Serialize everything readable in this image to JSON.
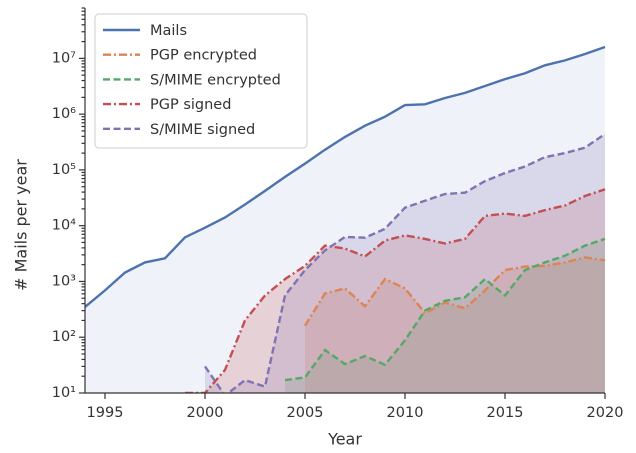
{
  "chart_data": {
    "type": "line",
    "xlabel": "Year",
    "ylabel": "# Mails per year",
    "x": [
      1994,
      1995,
      1996,
      1997,
      1998,
      1999,
      2000,
      2001,
      2002,
      2003,
      2004,
      2005,
      2006,
      2007,
      2008,
      2009,
      2010,
      2011,
      2012,
      2013,
      2014,
      2015,
      2016,
      2017,
      2018,
      2019,
      2020
    ],
    "xlim": [
      1994,
      2020
    ],
    "xticks": [
      1995,
      2000,
      2005,
      2010,
      2015,
      2020
    ],
    "ylim": [
      10,
      80000000
    ],
    "yscale": "log",
    "yticks": [
      {
        "value": 10,
        "label": "10¹"
      },
      {
        "value": 100,
        "label": "10²"
      },
      {
        "value": 1000,
        "label": "10³"
      },
      {
        "value": 10000,
        "label": "10⁴"
      },
      {
        "value": 100000,
        "label": "10⁵"
      },
      {
        "value": 1000000,
        "label": "10⁶"
      },
      {
        "value": 10000000,
        "label": "10⁷"
      }
    ],
    "legend": "upper left",
    "grid": false,
    "series": [
      {
        "name": "Mails",
        "color": "#4c72b0",
        "dash": "solid",
        "values": [
          350,
          690,
          1450,
          2200,
          2600,
          6200,
          9200,
          14000,
          24000,
          42000,
          75000,
          130000,
          230000,
          390000,
          620000,
          900000,
          1450000,
          1500000,
          1950000,
          2400000,
          3200000,
          4250000,
          5400000,
          7500000,
          9200000,
          12000000,
          16000000
        ]
      },
      {
        "name": "PGP encrypted",
        "color": "#dd8452",
        "dash": "dashdot",
        "values": [
          null,
          null,
          null,
          null,
          null,
          null,
          null,
          null,
          null,
          null,
          null,
          160,
          610,
          750,
          360,
          1100,
          750,
          270,
          420,
          330,
          690,
          1600,
          1850,
          1900,
          2200,
          2700,
          2400
        ]
      },
      {
        "name": "S/MIME encrypted",
        "color": "#55a868",
        "dash": "dashed",
        "values": [
          null,
          null,
          null,
          null,
          null,
          null,
          null,
          null,
          null,
          null,
          17,
          19,
          59,
          33,
          46,
          32,
          88,
          300,
          450,
          520,
          1100,
          560,
          1600,
          2200,
          2900,
          4400,
          5800
        ]
      },
      {
        "name": "PGP signed",
        "color": "#c44e52",
        "dash": "dashdot",
        "values": [
          null,
          null,
          null,
          null,
          null,
          10,
          10,
          26,
          200,
          560,
          1100,
          1900,
          4400,
          3900,
          2800,
          5400,
          6700,
          5800,
          4800,
          5800,
          15000,
          16500,
          15000,
          19000,
          23000,
          34000,
          45000
        ]
      },
      {
        "name": "S/MIME signed",
        "color": "#8172b3",
        "dash": "dashed",
        "values": [
          null,
          null,
          null,
          null,
          null,
          null,
          30,
          9,
          17,
          13,
          560,
          1600,
          3600,
          6300,
          6100,
          8800,
          21000,
          28000,
          37000,
          39000,
          63000,
          88000,
          115000,
          170000,
          200000,
          250000,
          440000
        ]
      }
    ]
  }
}
